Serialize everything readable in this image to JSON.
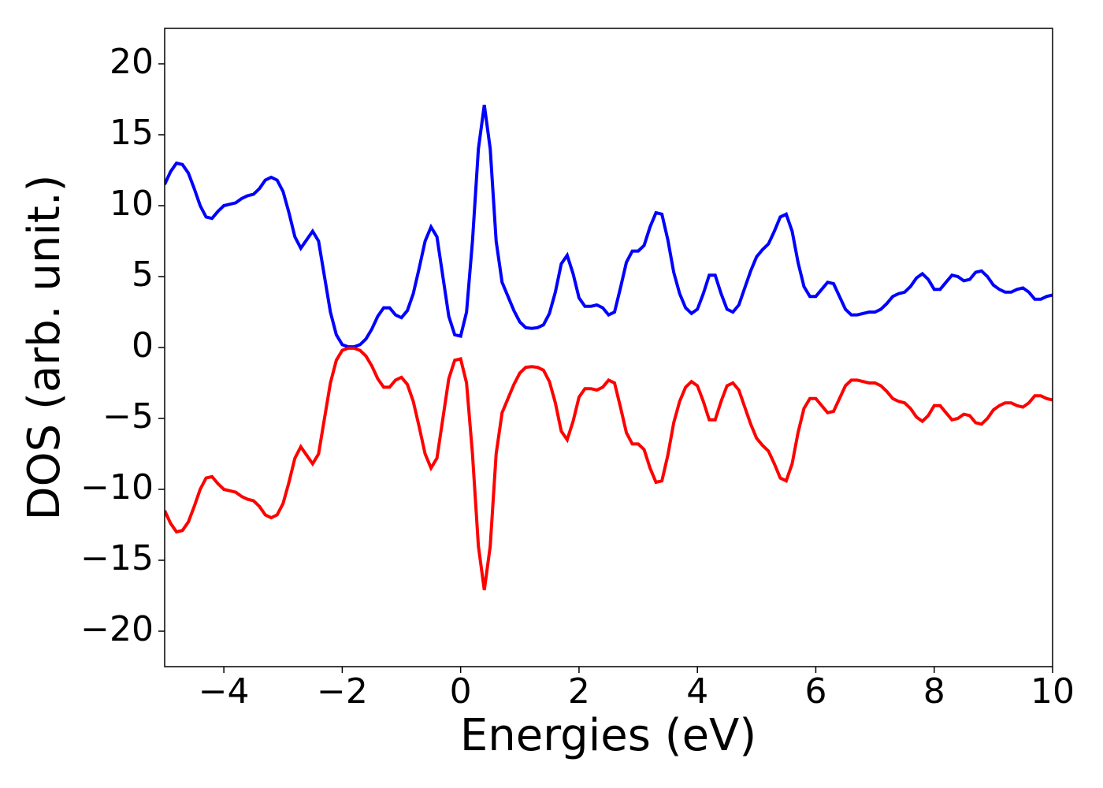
{
  "chart_data": {
    "type": "line",
    "xlabel": "Energies (eV)",
    "ylabel": "DOS (arb. unit.)",
    "x": [
      -5,
      -4.9,
      -4.8,
      -4.7,
      -4.6,
      -4.5,
      -4.4,
      -4.3,
      -4.2,
      -4.1,
      -4,
      -3.9,
      -3.8,
      -3.7,
      -3.6,
      -3.5,
      -3.4,
      -3.3,
      -3.2,
      -3.1,
      -3,
      -2.9,
      -2.8,
      -2.7,
      -2.6,
      -2.5,
      -2.4,
      -2.3,
      -2.2,
      -2.1,
      -2,
      -1.9,
      -1.8,
      -1.7,
      -1.6,
      -1.5,
      -1.4,
      -1.3,
      -1.2,
      -1.1,
      -1,
      -0.9,
      -0.8,
      -0.7,
      -0.6,
      -0.5,
      -0.4,
      -0.3,
      -0.2,
      -0.1,
      0,
      0.1,
      0.2,
      0.3,
      0.4,
      0.5,
      0.6,
      0.7,
      0.8,
      0.9,
      1,
      1.1,
      1.2,
      1.3,
      1.4,
      1.5,
      1.6,
      1.7,
      1.8,
      1.9,
      2,
      2.1,
      2.2,
      2.3,
      2.4,
      2.5,
      2.6,
      2.7,
      2.8,
      2.9,
      3,
      3.1,
      3.2,
      3.3,
      3.4,
      3.5,
      3.6,
      3.7,
      3.8,
      3.9,
      4,
      4.1,
      4.2,
      4.3,
      4.4,
      4.5,
      4.6,
      4.7,
      4.8,
      4.9,
      5,
      5.1,
      5.2,
      5.3,
      5.4,
      5.5,
      5.6,
      5.7,
      5.8,
      5.9,
      6,
      6.1,
      6.2,
      6.3,
      6.4,
      6.5,
      6.6,
      6.7,
      6.8,
      6.9,
      7,
      7.1,
      7.2,
      7.3,
      7.4,
      7.5,
      7.6,
      7.7,
      7.8,
      7.9,
      8,
      8.1,
      8.2,
      8.3,
      8.4,
      8.5,
      8.6,
      8.7,
      8.8,
      8.9,
      9,
      9.1,
      9.2,
      9.3,
      9.4,
      9.5,
      9.6,
      9.7,
      9.8,
      9.9,
      10
    ],
    "series": [
      {
        "color": "#0000ff",
        "values": [
          11.5,
          12.4,
          13.0,
          12.9,
          12.3,
          11.2,
          10.0,
          9.2,
          9.1,
          9.6,
          10.0,
          10.1,
          10.2,
          10.5,
          10.7,
          10.8,
          11.2,
          11.8,
          12.0,
          11.8,
          11.0,
          9.5,
          7.8,
          7.0,
          7.6,
          8.2,
          7.5,
          5.0,
          2.5,
          0.9,
          0.2,
          0.05,
          0.05,
          0.2,
          0.6,
          1.3,
          2.2,
          2.8,
          2.8,
          2.3,
          2.1,
          2.6,
          3.8,
          5.6,
          7.5,
          8.5,
          7.8,
          5.0,
          2.2,
          0.9,
          0.8,
          2.5,
          7.5,
          14.0,
          17.1,
          14.0,
          7.5,
          4.6,
          3.6,
          2.6,
          1.8,
          1.4,
          1.35,
          1.4,
          1.6,
          2.4,
          3.9,
          5.9,
          6.5,
          5.2,
          3.5,
          2.9,
          2.9,
          3.0,
          2.8,
          2.3,
          2.5,
          4.2,
          6.0,
          6.8,
          6.8,
          7.2,
          8.5,
          9.5,
          9.4,
          7.6,
          5.3,
          3.8,
          2.8,
          2.4,
          2.7,
          3.8,
          5.1,
          5.1,
          3.8,
          2.7,
          2.5,
          3.0,
          4.2,
          5.4,
          6.4,
          6.9,
          7.3,
          8.2,
          9.2,
          9.4,
          8.2,
          6.0,
          4.3,
          3.6,
          3.6,
          4.1,
          4.6,
          4.5,
          3.6,
          2.7,
          2.3,
          2.3,
          2.4,
          2.5,
          2.5,
          2.7,
          3.1,
          3.6,
          3.8,
          3.9,
          4.3,
          4.9,
          5.2,
          4.8,
          4.1,
          4.1,
          4.6,
          5.1,
          5.0,
          4.7,
          4.8,
          5.3,
          5.4,
          5.0,
          4.4,
          4.1,
          3.9,
          3.9,
          4.1,
          4.2,
          3.9,
          3.4,
          3.4,
          3.6,
          3.7
        ]
      },
      {
        "color": "#ff0000",
        "values": [
          -11.5,
          -12.4,
          -13.0,
          -12.9,
          -12.3,
          -11.2,
          -10.0,
          -9.2,
          -9.1,
          -9.6,
          -10.0,
          -10.1,
          -10.2,
          -10.5,
          -10.7,
          -10.8,
          -11.2,
          -11.8,
          -12.0,
          -11.8,
          -11.0,
          -9.5,
          -7.8,
          -7.0,
          -7.6,
          -8.2,
          -7.5,
          -5.0,
          -2.5,
          -0.9,
          -0.2,
          -0.05,
          -0.05,
          -0.2,
          -0.6,
          -1.3,
          -2.2,
          -2.8,
          -2.8,
          -2.3,
          -2.1,
          -2.6,
          -3.8,
          -5.6,
          -7.5,
          -8.5,
          -7.8,
          -5.0,
          -2.2,
          -0.9,
          -0.8,
          -2.5,
          -7.5,
          -14.0,
          -17.1,
          -14.0,
          -7.5,
          -4.6,
          -3.6,
          -2.6,
          -1.8,
          -1.4,
          -1.35,
          -1.4,
          -1.6,
          -2.4,
          -3.9,
          -5.9,
          -6.5,
          -5.2,
          -3.5,
          -2.9,
          -2.9,
          -3.0,
          -2.8,
          -2.3,
          -2.5,
          -4.2,
          -6.0,
          -6.8,
          -6.8,
          -7.2,
          -8.5,
          -9.5,
          -9.4,
          -7.6,
          -5.3,
          -3.8,
          -2.8,
          -2.4,
          -2.7,
          -3.8,
          -5.1,
          -5.1,
          -3.8,
          -2.7,
          -2.5,
          -3.0,
          -4.2,
          -5.4,
          -6.4,
          -6.9,
          -7.3,
          -8.2,
          -9.2,
          -9.4,
          -8.2,
          -6.0,
          -4.3,
          -3.6,
          -3.6,
          -4.1,
          -4.6,
          -4.5,
          -3.6,
          -2.7,
          -2.3,
          -2.3,
          -2.4,
          -2.5,
          -2.5,
          -2.7,
          -3.1,
          -3.6,
          -3.8,
          -3.9,
          -4.3,
          -4.9,
          -5.2,
          -4.8,
          -4.1,
          -4.1,
          -4.6,
          -5.1,
          -5.0,
          -4.7,
          -4.8,
          -5.3,
          -5.4,
          -5.0,
          -4.4,
          -4.1,
          -3.9,
          -3.9,
          -4.1,
          -4.2,
          -3.9,
          -3.4,
          -3.4,
          -3.6,
          -3.7
        ]
      }
    ],
    "xlim": [
      -5,
      10
    ],
    "xticks": [
      {
        "value": -4,
        "label": "−4"
      },
      {
        "value": -2,
        "label": "−2"
      },
      0,
      2,
      4,
      6,
      8,
      10
    ],
    "ylim": [
      -22.5,
      22.5
    ],
    "yticks": [
      {
        "value": -20,
        "label": "−20"
      },
      {
        "value": -15,
        "label": "−15"
      },
      {
        "value": -10,
        "label": "−10"
      },
      {
        "value": -5,
        "label": "−5"
      },
      0,
      5,
      10,
      15,
      20
    ]
  }
}
